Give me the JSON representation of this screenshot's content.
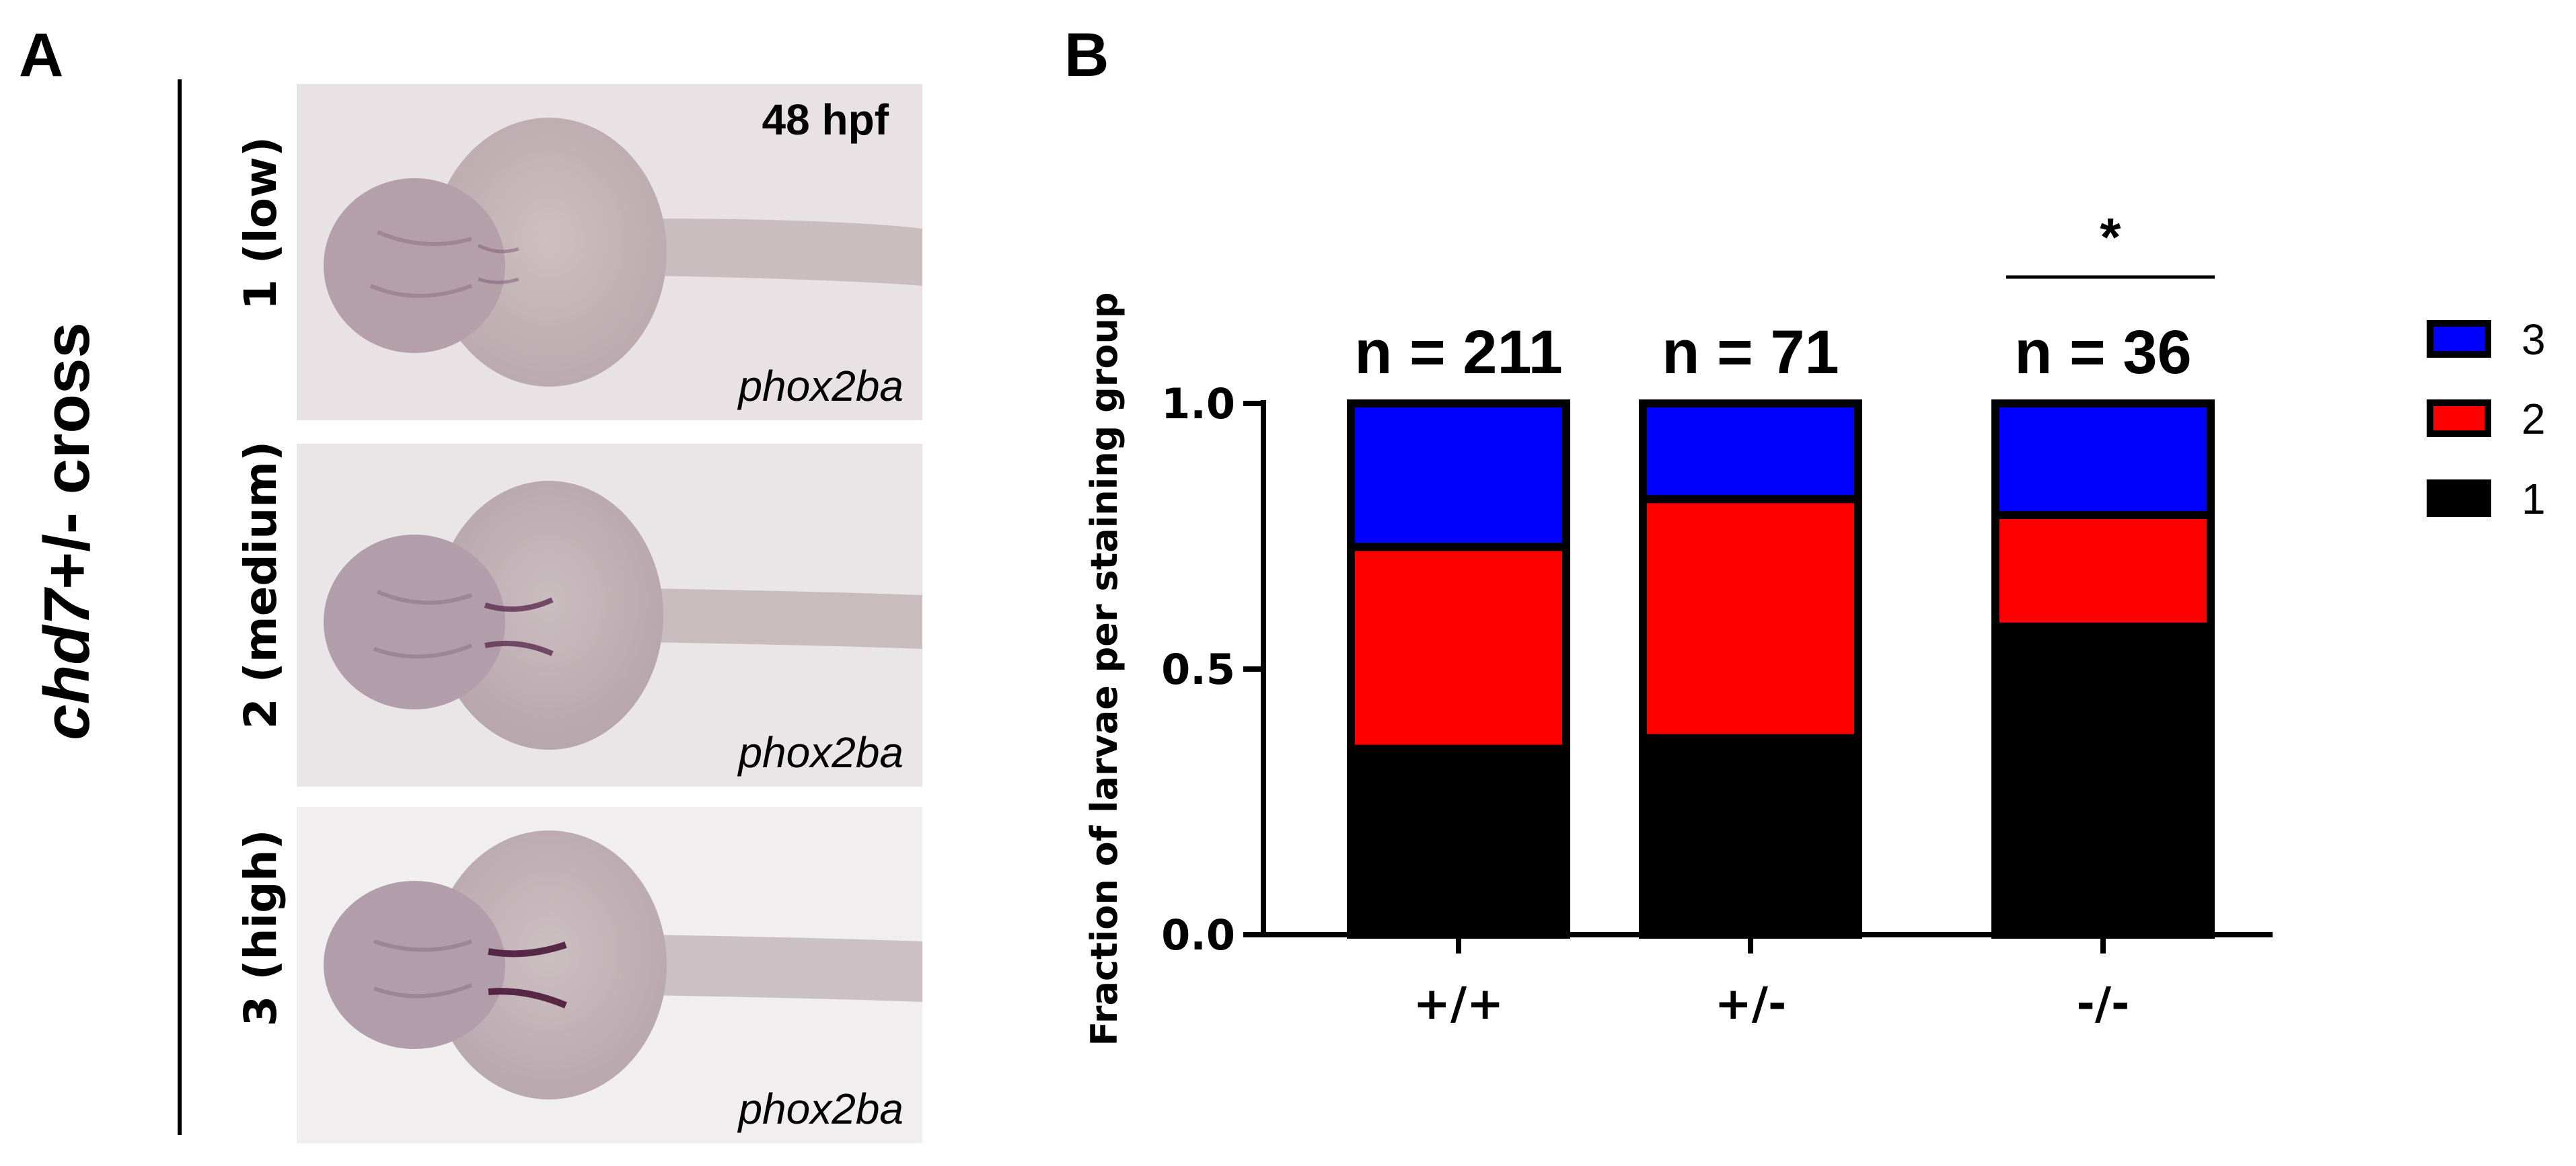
{
  "panel_a": {
    "letter": "A",
    "side_title_gene": "chd7",
    "side_title_rest": "+/- cross",
    "stage": "48 hpf",
    "rows": [
      {
        "label": "1 (low)",
        "gene": "phox2ba",
        "level": 1
      },
      {
        "label": "2 (medium)",
        "gene": "phox2ba",
        "level": 2
      },
      {
        "label": "3 (high)",
        "gene": "phox2ba",
        "level": 3
      }
    ]
  },
  "panel_b": {
    "letter": "B",
    "significance": "*"
  },
  "chart_data": {
    "type": "bar",
    "stacked": true,
    "categories": [
      "+/+",
      "+/-",
      "-/-"
    ],
    "n_labels": [
      "n = 211",
      "n = 71",
      "n = 36"
    ],
    "series": [
      {
        "name": "1",
        "color": "#000000",
        "values": [
          0.35,
          0.37,
          0.58
        ]
      },
      {
        "name": "2",
        "color": "#ff0000",
        "values": [
          0.38,
          0.45,
          0.21
        ]
      },
      {
        "name": "3",
        "color": "#0000ff",
        "values": [
          0.27,
          0.18,
          0.21
        ]
      }
    ],
    "ylabel": "Fraction of larvae per staining group",
    "xlabel": "",
    "ylim": [
      0,
      1.0
    ],
    "yticks": [
      "0.0",
      "0.5",
      "1.0"
    ],
    "legend_order": [
      "3",
      "2",
      "1"
    ],
    "legend_position": "right",
    "grid": false
  }
}
